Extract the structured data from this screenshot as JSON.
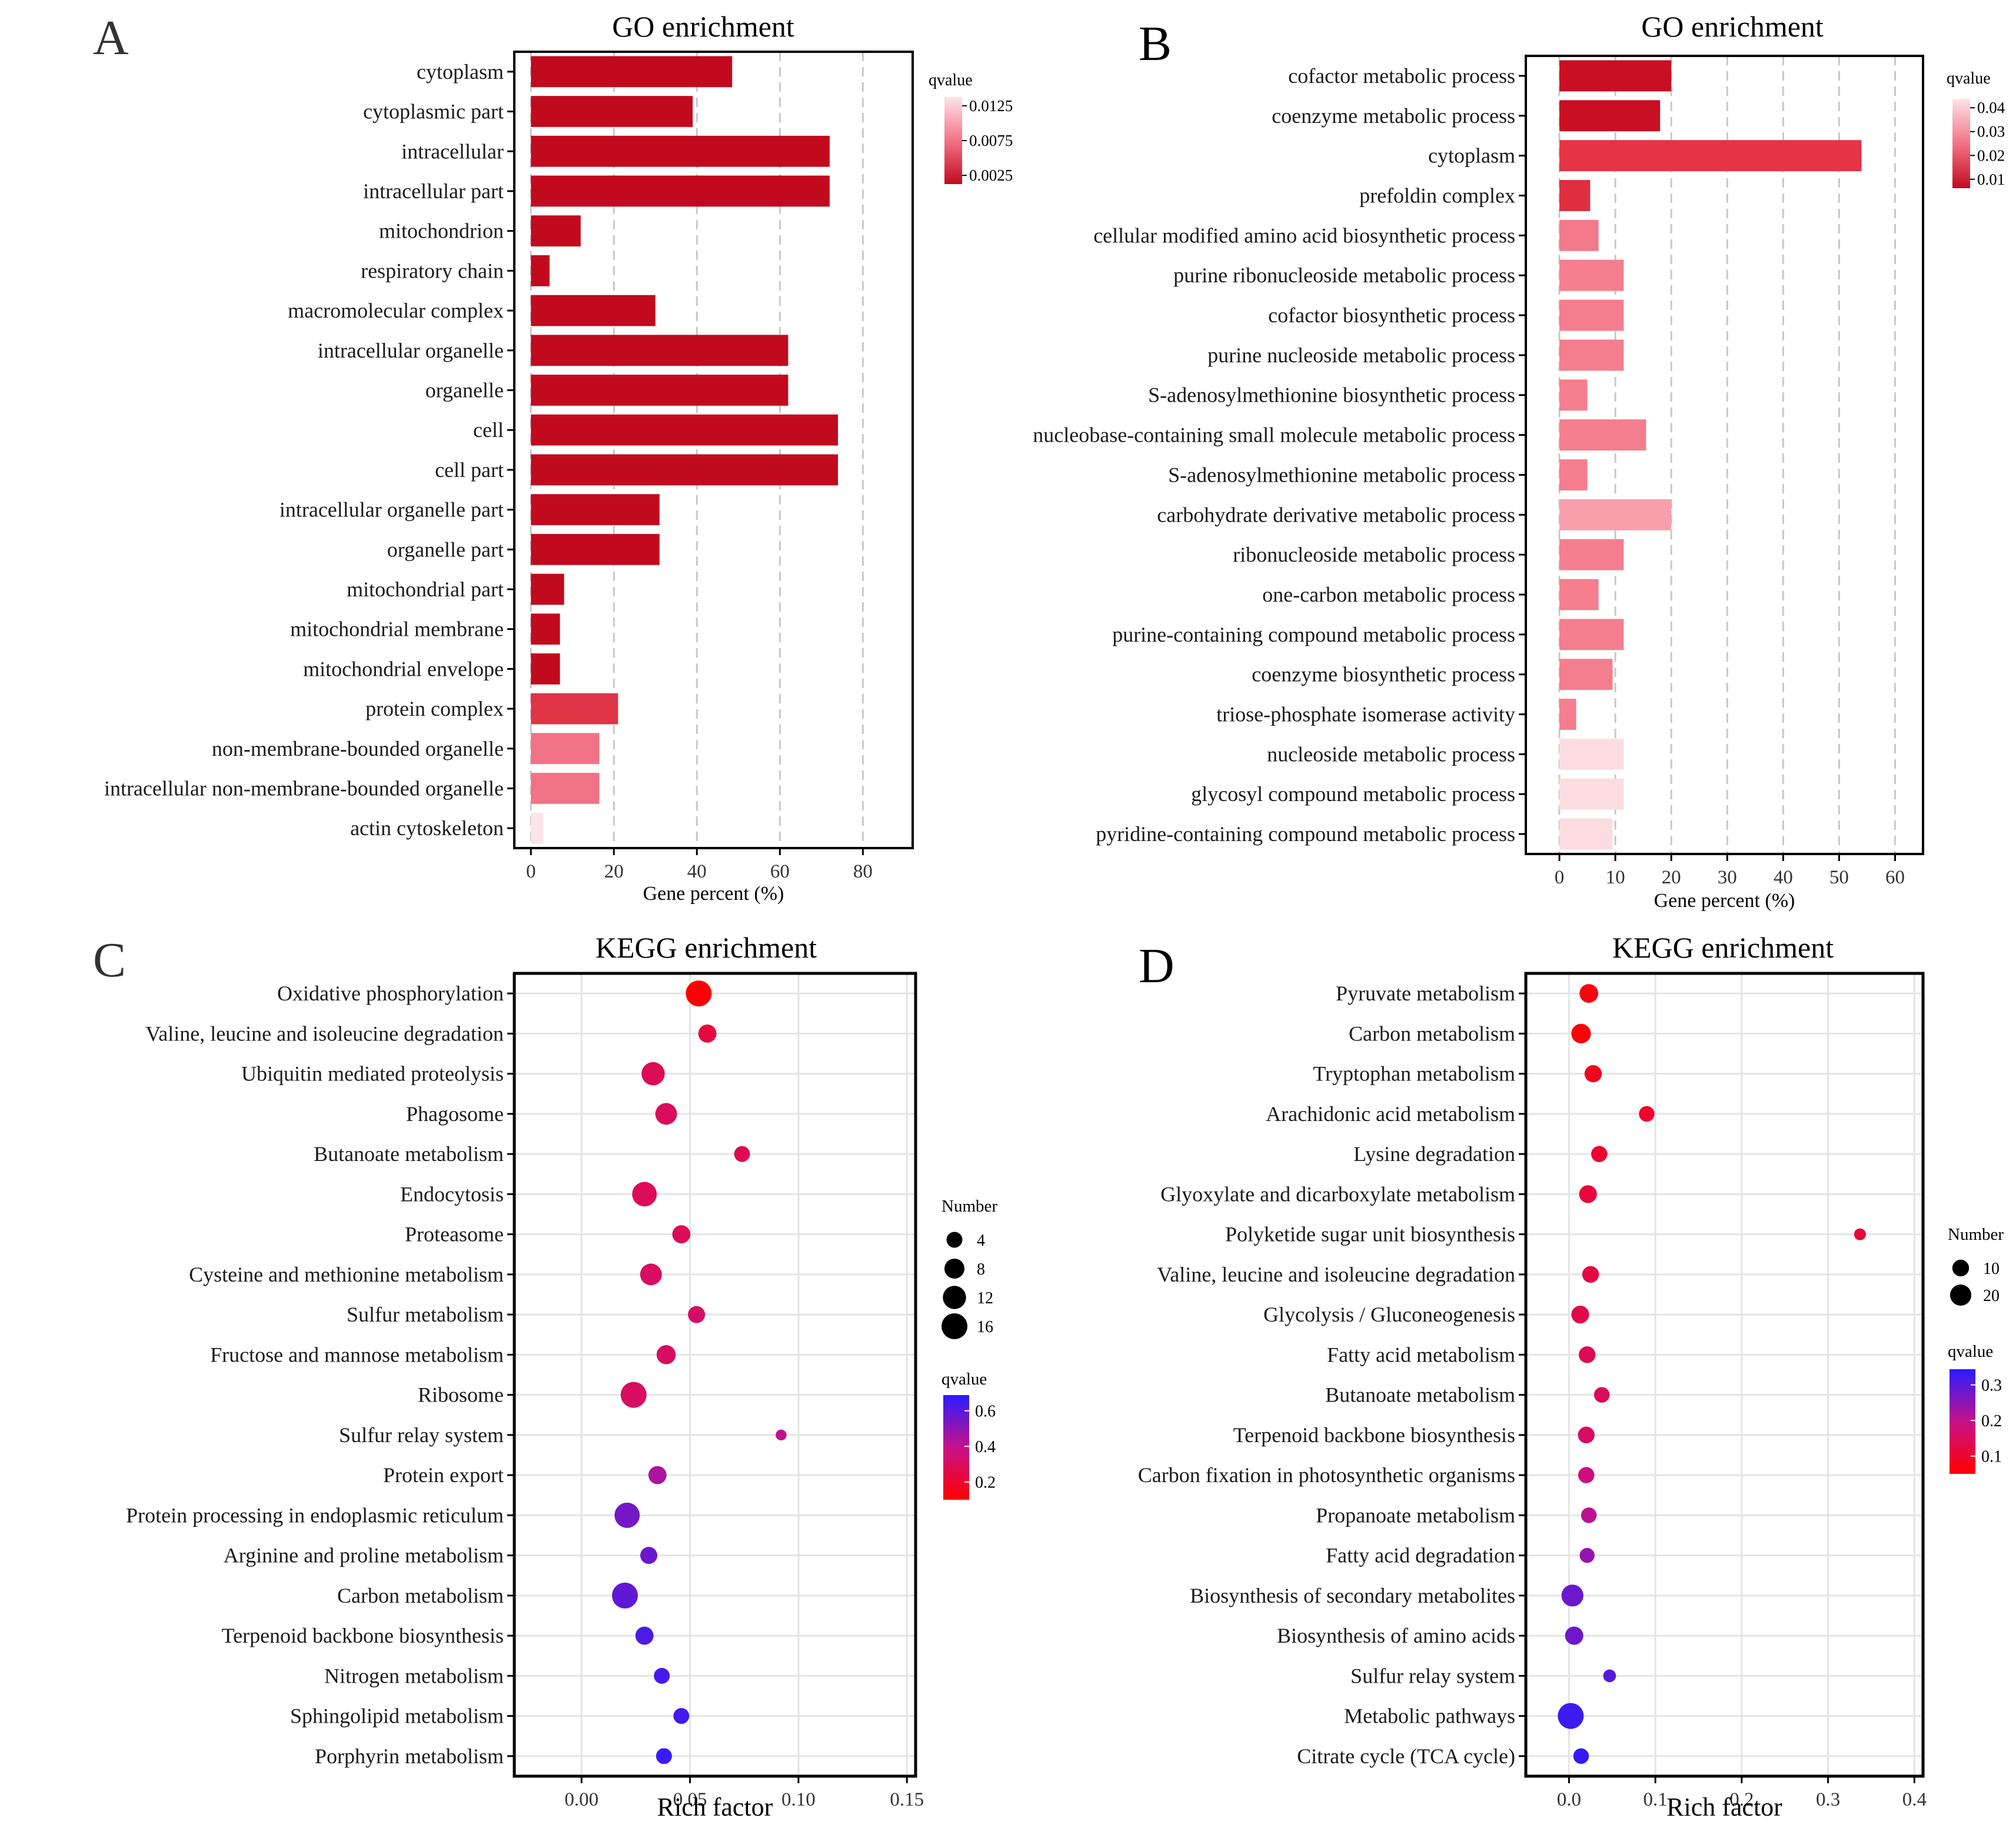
{
  "chart_data": [
    {
      "panel": "A",
      "type": "bar",
      "title": "GO enrichment",
      "xlabel": "Gene percent (%)",
      "xlim": [
        -4,
        92
      ],
      "xticks": [
        0,
        20,
        40,
        60,
        80
      ],
      "grid": "vertical dashed",
      "legend": {
        "title": "qvalue",
        "placement": "right",
        "ticks": [
          "0.0125",
          "0.0075",
          "0.0025"
        ],
        "colors": [
          "#fce4e8",
          "#f27385",
          "#c20a1f"
        ]
      },
      "categories": [
        "cytoplasm",
        "cytoplasmic part",
        "intracellular",
        "intracellular part",
        "mitochondrion",
        "respiratory chain",
        "macromolecular complex",
        "intracellular organelle",
        "organelle",
        "cell",
        "cell part",
        "intracellular organelle part",
        "organelle part",
        "mitochondrial part",
        "mitochondrial membrane",
        "mitochondrial envelope",
        "protein complex",
        "non-membrane-bounded organelle",
        "intracellular non-membrane-bounded organelle",
        "actin cytoskeleton"
      ],
      "values": [
        48.5,
        39,
        72,
        72,
        12,
        4.5,
        30,
        62,
        62,
        74,
        74,
        31,
        31,
        8,
        7,
        7,
        21,
        16.5,
        16.5,
        3
      ],
      "bar_colors": [
        "#c20a1f",
        "#c20a1f",
        "#c20a1f",
        "#c20a1f",
        "#c20a1f",
        "#c20a1f",
        "#c20a1f",
        "#c20a1f",
        "#c20a1f",
        "#c20a1f",
        "#c20a1f",
        "#c20a1f",
        "#c20a1f",
        "#c20a1f",
        "#c20a1f",
        "#c20a1f",
        "#de3446",
        "#f27385",
        "#f27385",
        "#fce4e8"
      ]
    },
    {
      "panel": "B",
      "type": "bar",
      "title": "GO enrichment",
      "xlabel": "Gene percent (%)",
      "xlim": [
        -6,
        65
      ],
      "xticks": [
        0,
        10,
        20,
        30,
        40,
        50,
        60
      ],
      "grid": "vertical dashed",
      "legend": {
        "title": "qvalue",
        "placement": "right",
        "ticks": [
          "0.04",
          "0.03",
          "0.02",
          "0.01"
        ],
        "colors": [
          "#fce4e8",
          "#f27385",
          "#c20a1f"
        ]
      },
      "categories": [
        "cofactor metabolic process",
        "coenzyme metabolic process",
        "cytoplasm",
        "prefoldin complex",
        "cellular modified amino acid biosynthetic process",
        "purine ribonucleoside metabolic process",
        "cofactor biosynthetic process",
        "purine nucleoside metabolic process",
        "S-adenosylmethionine biosynthetic process",
        "nucleobase-containing small molecule metabolic process",
        "S-adenosylmethionine metabolic process",
        "carbohydrate derivative metabolic process",
        "ribonucleoside metabolic process",
        "one-carbon metabolic process",
        "purine-containing compound metabolic process",
        "coenzyme biosynthetic process",
        "triose-phosphate isomerase activity",
        "nucleoside metabolic process",
        "glycosyl compound metabolic process",
        "pyridine-containing compound metabolic process"
      ],
      "values": [
        20,
        18,
        54,
        5.5,
        7,
        11.5,
        11.5,
        11.5,
        5,
        15.5,
        5,
        20,
        11.5,
        7,
        11.5,
        9.5,
        3,
        11.5,
        11.5,
        9.5
      ],
      "bar_colors": [
        "#c80f24",
        "#c80f24",
        "#e63446",
        "#de2e40",
        "#f27a8a",
        "#f47e8e",
        "#f47e8e",
        "#f47e8e",
        "#f47e8e",
        "#f47e8e",
        "#f47e8e",
        "#f7a0ac",
        "#f47e8e",
        "#f47e8e",
        "#f47e8e",
        "#f47e8e",
        "#f47e8e",
        "#fbdde1",
        "#fbdde1",
        "#fbdde1"
      ]
    },
    {
      "panel": "C",
      "type": "scatter",
      "title": "KEGG enrichment",
      "xlabel": "Rich factor",
      "xlim": [
        -0.031,
        0.154
      ],
      "xticks": [
        0.0,
        0.05,
        0.1,
        0.15
      ],
      "xticklabels": [
        "0.00",
        "0.05",
        "0.10",
        "0.15"
      ],
      "size_legend": {
        "title": "Number",
        "values": [
          4,
          8,
          12,
          16
        ]
      },
      "color_legend": {
        "title": "qvalue",
        "ticks": [
          "0.6",
          "0.4",
          "0.2"
        ],
        "low_color": "#ff0000",
        "high_color": "#2a1cff"
      },
      "categories": [
        "Oxidative phosphorylation",
        "Valine, leucine and isoleucine degradation",
        "Ubiquitin mediated proteolysis",
        "Phagosome",
        "Butanoate metabolism",
        "Endocytosis",
        "Proteasome",
        "Cysteine and methionine metabolism",
        "Sulfur metabolism",
        "Fructose and mannose metabolism",
        "Ribosome",
        "Sulfur relay system",
        "Protein export",
        "Protein processing in endoplasmic reticulum",
        "Arginine and proline metabolism",
        "Carbon metabolism",
        "Terpenoid backbone biosynthesis",
        "Nitrogen metabolism",
        "Sphingolipid metabolism",
        "Porphyrin metabolism"
      ],
      "x": [
        0.054,
        0.058,
        0.033,
        0.039,
        0.074,
        0.029,
        0.046,
        0.032,
        0.053,
        0.039,
        0.024,
        0.092,
        0.035,
        0.021,
        0.031,
        0.02,
        0.029,
        0.037,
        0.046,
        0.038
      ],
      "number": [
        16,
        6,
        12,
        10,
        4,
        14,
        6,
        10,
        5,
        7,
        16,
        1,
        6,
        15,
        5,
        16,
        6,
        4,
        4,
        4
      ],
      "qvalue": [
        0.01,
        0.18,
        0.25,
        0.27,
        0.24,
        0.26,
        0.26,
        0.28,
        0.3,
        0.28,
        0.28,
        0.42,
        0.47,
        0.61,
        0.63,
        0.66,
        0.71,
        0.73,
        0.74,
        0.76
      ]
    },
    {
      "panel": "D",
      "type": "scatter",
      "title": "KEGG enrichment",
      "xlabel": "Rich factor",
      "xlim": [
        -0.05,
        0.41
      ],
      "xticks": [
        0.0,
        0.1,
        0.2,
        0.3,
        0.4
      ],
      "xticklabels": [
        "0.0",
        "0.1",
        "0.2",
        "0.3",
        "0.4"
      ],
      "size_legend": {
        "title": "Number",
        "values": [
          10,
          20
        ]
      },
      "color_legend": {
        "title": "qvalue",
        "ticks": [
          "0.3",
          "0.2",
          "0.1"
        ],
        "low_color": "#ff0000",
        "high_color": "#2a1cff"
      },
      "categories": [
        "Pyruvate metabolism",
        "Carbon metabolism",
        "Tryptophan metabolism",
        "Arachidonic acid metabolism",
        "Lysine degradation",
        "Glyoxylate and dicarboxylate metabolism",
        "Polyketide sugar unit biosynthesis",
        "Valine, leucine and isoleucine degradation",
        "Glycolysis / Gluconeogenesis",
        "Fatty acid metabolism",
        "Butanoate metabolism",
        "Terpenoid backbone biosynthesis",
        "Carbon fixation in photosynthetic organisms",
        "Propanoate metabolism",
        "Fatty acid degradation",
        "Biosynthesis of secondary metabolites",
        "Biosynthesis of amino acids",
        "Sulfur relay system",
        "Metabolic pathways",
        "Citrate cycle (TCA cycle)"
      ],
      "x": [
        0.023,
        0.014,
        0.028,
        0.09,
        0.035,
        0.022,
        0.337,
        0.025,
        0.013,
        0.021,
        0.038,
        0.02,
        0.02,
        0.023,
        0.021,
        0.004,
        0.006,
        0.047,
        0.002,
        0.014
      ],
      "number": [
        14,
        16,
        11,
        8,
        9,
        12,
        3,
        10,
        12,
        10,
        8,
        10,
        9,
        8,
        7,
        22,
        13,
        4,
        34,
        8
      ],
      "qvalue": [
        0.02,
        0.01,
        0.04,
        0.05,
        0.06,
        0.07,
        0.07,
        0.08,
        0.09,
        0.1,
        0.11,
        0.12,
        0.15,
        0.18,
        0.22,
        0.26,
        0.26,
        0.28,
        0.31,
        0.32
      ]
    }
  ]
}
